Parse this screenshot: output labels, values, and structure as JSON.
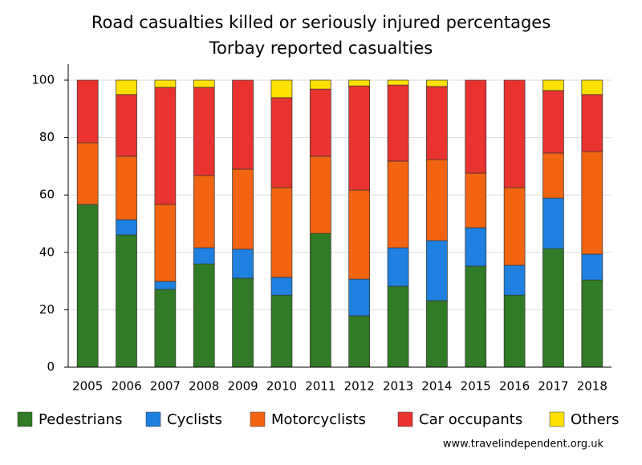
{
  "chart_data": {
    "type": "stacked-bar",
    "title": "Road casualties killed or seriously injured percentages",
    "subtitle": "Torbay reported casualties",
    "source": "www.travelindependent.org.uk",
    "categories": [
      "2005",
      "2006",
      "2007",
      "2008",
      "2009",
      "2010",
      "2011",
      "2012",
      "2013",
      "2014",
      "2015",
      "2016",
      "2017",
      "2018"
    ],
    "series": [
      {
        "name": "Pedestrians",
        "color": "#317a26",
        "values": [
          56.7,
          46.1,
          27.1,
          36.0,
          31.0,
          25.1,
          46.6,
          17.9,
          28.2,
          23.2,
          35.2,
          25.1,
          41.3,
          30.4
        ]
      },
      {
        "name": "Cyclists",
        "color": "#1f80e0",
        "values": [
          0,
          5.3,
          2.8,
          5.6,
          10.1,
          6.2,
          0,
          12.8,
          13.4,
          20.9,
          13.4,
          10.4,
          17.6,
          9.0
        ]
      },
      {
        "name": "Motorcyclists",
        "color": "#f26411",
        "values": [
          21.5,
          22.1,
          26.8,
          25.2,
          27.9,
          31.3,
          26.9,
          31.0,
          30.2,
          28.2,
          19.0,
          27.1,
          15.7,
          35.7
        ]
      },
      {
        "name": "Car occupants",
        "color": "#e83330",
        "values": [
          21.8,
          21.5,
          40.8,
          30.7,
          31.0,
          31.3,
          23.4,
          36.3,
          26.5,
          25.5,
          32.4,
          37.4,
          21.8,
          19.9
        ]
      },
      {
        "name": "Others",
        "color": "#ffe100",
        "values": [
          0,
          5.0,
          2.5,
          2.5,
          0,
          6.1,
          3.1,
          2.0,
          1.7,
          2.2,
          0,
          0,
          3.6,
          5.0
        ]
      }
    ],
    "ylim": [
      0,
      100
    ],
    "yticks": [
      0,
      20,
      40,
      60,
      80,
      100
    ],
    "grid": true,
    "legend": "bottom"
  }
}
